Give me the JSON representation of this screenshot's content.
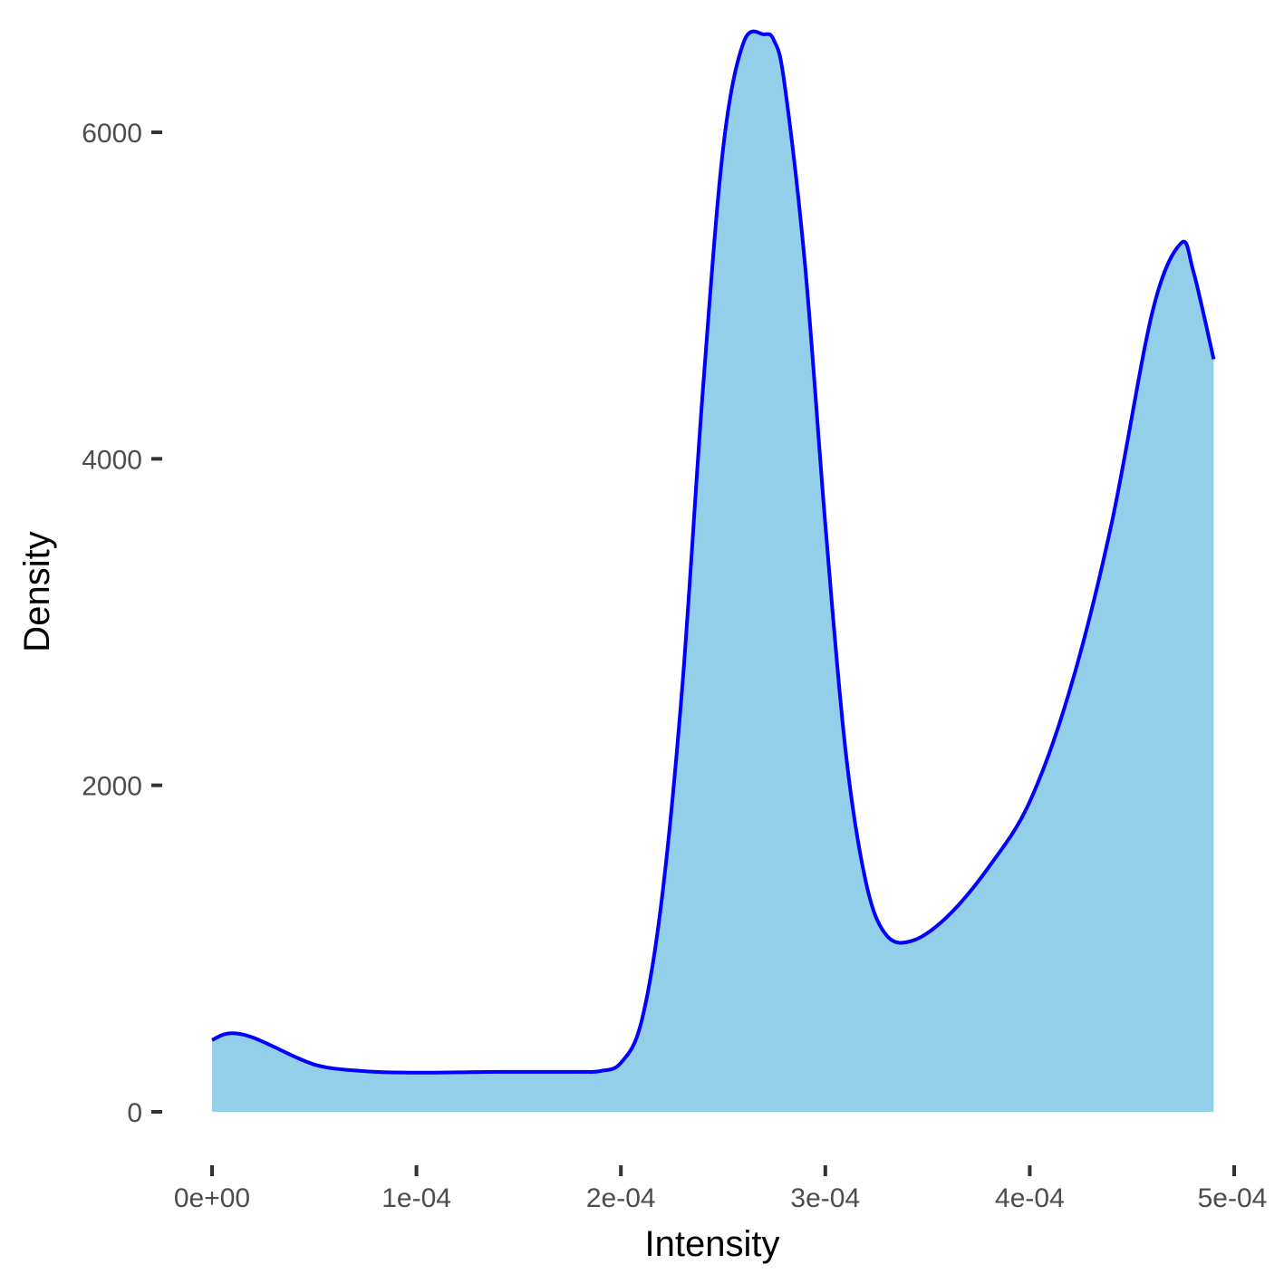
{
  "chart_data": {
    "type": "area",
    "title": "",
    "xlabel": "Intensity",
    "ylabel": "Density",
    "xlim": [
      0,
      0.0005
    ],
    "ylim": [
      0,
      6500
    ],
    "grid": false,
    "x_ticks": [
      {
        "value": 0,
        "label": "0e+00"
      },
      {
        "value": 0.0001,
        "label": "1e-04"
      },
      {
        "value": 0.0002,
        "label": "2e-04"
      },
      {
        "value": 0.0003,
        "label": "3e-04"
      },
      {
        "value": 0.0004,
        "label": "4e-04"
      },
      {
        "value": 0.0005,
        "label": "5e-04"
      }
    ],
    "y_ticks": [
      {
        "value": 0,
        "label": "0"
      },
      {
        "value": 2000,
        "label": "2000"
      },
      {
        "value": 4000,
        "label": "4000"
      },
      {
        "value": 6000,
        "label": "6000"
      }
    ],
    "colors": {
      "fill": "#94CFEA",
      "line": "#0000FF"
    },
    "series": [
      {
        "x": [
          0,
          6e-06,
          1.2e-05,
          2e-05,
          3e-05,
          4e-05,
          5e-05,
          6e-05,
          8e-05,
          0.0001,
          0.00012,
          0.00014,
          0.00016,
          0.00018,
          0.00019,
          0.0002,
          0.00021,
          0.00022,
          0.00023,
          0.00024,
          0.00025,
          0.00026,
          0.00027,
          0.000275,
          0.00028,
          0.00029,
          0.0003,
          0.00031,
          0.00032,
          0.00033,
          0.000343,
          0.00036,
          0.00038,
          0.0004,
          0.00042,
          0.00044,
          0.00046,
          0.000474,
          0.00048,
          0.00049
        ],
        "y": [
          440,
          475,
          480,
          455,
          400,
          340,
          290,
          265,
          245,
          240,
          242,
          245,
          245,
          245,
          250,
          300,
          550,
          1300,
          2600,
          4400,
          5900,
          6550,
          6600,
          6560,
          6300,
          5200,
          3600,
          2200,
          1400,
          1080,
          1050,
          1200,
          1500,
          1900,
          2600,
          3600,
          4900,
          5320,
          5150,
          4610
        ]
      }
    ]
  }
}
